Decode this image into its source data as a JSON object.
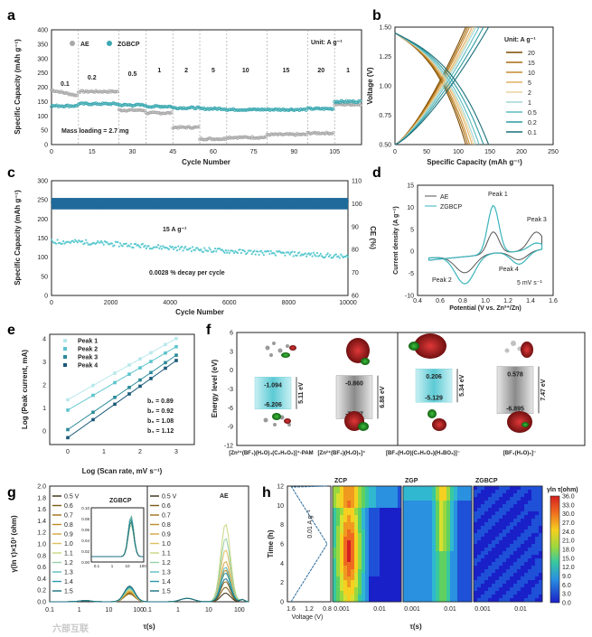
{
  "watermark": "六部互联",
  "chart_data": [
    {
      "panel": "a",
      "type": "scatter",
      "xlabel": "Cycle Number",
      "ylabel": "Specific Capacity (mAh g⁻¹)",
      "xlim": [
        0,
        115
      ],
      "ylim": [
        0,
        400
      ],
      "xticks": [
        "0",
        "15",
        "30",
        "45",
        "60",
        "75",
        "90",
        "105"
      ],
      "yticks": [
        "0",
        "50",
        "100",
        "150",
        "200",
        "250",
        "300",
        "350",
        "400"
      ],
      "unit_label": "Unit: A g⁻¹",
      "mass_loading": "Mass loading = 2.7 mg",
      "rates": [
        "0.1",
        "0.2",
        "0.5",
        "1",
        "2",
        "5",
        "10",
        "15",
        "20",
        "1"
      ],
      "series": [
        {
          "name": "AE",
          "color": "#a8a8a8",
          "segments": [
            [
              0,
              10,
              180
            ],
            [
              10,
              25,
              185
            ],
            [
              25,
              35,
              120
            ],
            [
              35,
              45,
              110
            ],
            [
              45,
              55,
              60
            ],
            [
              55,
              65,
              20
            ],
            [
              65,
              80,
              25
            ],
            [
              80,
              95,
              35
            ],
            [
              95,
              105,
              40
            ],
            [
              105,
              115,
              140
            ]
          ]
        },
        {
          "name": "ZGBCP",
          "color": "#3aa8b0",
          "segments": [
            [
              0,
              10,
              135
            ],
            [
              10,
              25,
              142
            ],
            [
              25,
              35,
              138
            ],
            [
              35,
              45,
              133
            ],
            [
              45,
              55,
              128
            ],
            [
              55,
              65,
              125
            ],
            [
              65,
              80,
              122
            ],
            [
              80,
              95,
              122
            ],
            [
              95,
              105,
              125
            ],
            [
              105,
              115,
              150
            ]
          ]
        }
      ]
    },
    {
      "panel": "b",
      "type": "line",
      "xlabel": "Specific Capacity (mAh g⁻¹)",
      "ylabel": "Voltage (V)",
      "xlim": [
        0,
        250
      ],
      "ylim": [
        0.5,
        1.5
      ],
      "xticks": [
        "0",
        "50",
        "100",
        "150",
        "200",
        "250"
      ],
      "yticks": [
        "0.50",
        "0.75",
        "1.00",
        "1.25",
        "1.50"
      ],
      "legend_title": "Unit: A g⁻¹",
      "legend": [
        "20",
        "15",
        "10",
        "5",
        "2",
        "1",
        "0.5",
        "0.2",
        "0.1"
      ],
      "colors": [
        "#7a4a00",
        "#a86a10",
        "#c58a30",
        "#e0b060",
        "#e8d4a0",
        "#9fd6d4",
        "#5cbcc0",
        "#2d9aa2",
        "#1a6e78"
      ],
      "capacities": [
        112,
        115,
        118,
        122,
        125,
        128,
        133,
        140,
        148
      ]
    },
    {
      "panel": "c",
      "type": "scatter",
      "xlabel": "Cycle Number",
      "ylabel": "Specific Capacity (mAh g⁻¹)",
      "y2label": "CE (%)",
      "xlim": [
        0,
        10000
      ],
      "ylim": [
        0,
        300
      ],
      "y2lim": [
        60,
        110
      ],
      "xticks": [
        "0",
        "2000",
        "4000",
        "6000",
        "8000",
        "10000"
      ],
      "yticks": [
        "0",
        "50",
        "100",
        "150",
        "200",
        "250",
        "300"
      ],
      "y2ticks": [
        "60",
        "70",
        "80",
        "90",
        "100",
        "110"
      ],
      "rate_label": "15 A g⁻¹",
      "decay_label": "0.0028 % decay per cycle",
      "capacity": {
        "x": [
          0,
          1000,
          3000,
          5000,
          7000,
          9000,
          10000
        ],
        "y": [
          140,
          140,
          130,
          120,
          112,
          106,
          100
        ]
      },
      "ce": {
        "x": [
          0,
          10000
        ],
        "y": [
          100,
          100
        ]
      }
    },
    {
      "panel": "d",
      "type": "line",
      "xlabel": "Potential (V vs. Zn²⁺/Zn)",
      "ylabel": "Current density (A g⁻¹)",
      "xlim": [
        0.4,
        1.6
      ],
      "ylim": [
        -10,
        15
      ],
      "xticks": [
        "0.4",
        "0.6",
        "0.8",
        "1.0",
        "1.2",
        "1.4",
        "1.6"
      ],
      "yticks": [
        "-10",
        "-5",
        "0",
        "5",
        "10",
        "15"
      ],
      "legend": [
        "AE",
        "ZGBCP"
      ],
      "annotations": [
        "Peak 1",
        "Peak 2",
        "Peak 3",
        "Peak 4",
        "5 mV s⁻¹"
      ]
    },
    {
      "panel": "e",
      "type": "scatter",
      "xlabel": "Log (Scan rate, mV s⁻¹)",
      "ylabel": "Log (Peak current, mA)",
      "xlim": [
        -0.5,
        3.5
      ],
      "ylim": [
        -0.6,
        4.2
      ],
      "xticks": [
        "0",
        "1",
        "2",
        "3"
      ],
      "yticks": [
        "0",
        "1",
        "2",
        "3",
        "4"
      ],
      "series": [
        {
          "name": "Peak 1",
          "b": "b₁ = 0.89",
          "color": "#b8e8ec",
          "x": [
            0,
            0.7,
            1.3,
            1.7,
            2.0,
            2.3,
            2.7,
            3.0
          ],
          "intercept": 1.35
        },
        {
          "name": "Peak 2",
          "b": "b₂ = 0.92",
          "color": "#5cc4cc",
          "x": [
            0,
            0.7,
            1.3,
            1.7,
            2.0,
            2.3,
            2.7,
            3.0
          ],
          "intercept": 0.9
        },
        {
          "name": "Peak 3",
          "b": "b₃ = 1.08",
          "color": "#2a8a98",
          "x": [
            0,
            0.7,
            1.3,
            1.7,
            2.0,
            2.3,
            2.7,
            3.0
          ],
          "intercept": 0.05
        },
        {
          "name": "Peak 4",
          "b": "b₄ = 1.12",
          "color": "#1a5878",
          "x": [
            0,
            0.7,
            1.3,
            1.7,
            2.0,
            2.3,
            2.7,
            3.0
          ],
          "intercept": -0.3
        }
      ]
    },
    {
      "panel": "f",
      "type": "bar",
      "ylabel": "Energy level (eV)",
      "ylim": [
        -12,
        6
      ],
      "yticks": [
        "6",
        "3",
        "0",
        "-3",
        "-6",
        "-9",
        "-12"
      ],
      "items": [
        {
          "lumo": "-1.094",
          "homo": "-6.206",
          "gap": "5.11 eV",
          "color": "#8fd6de",
          "label": "[Zn²⁺(BF₄)(H₂O)₄(C₂H₆O₂)]⁺-PAM"
        },
        {
          "lumo": "-0.860",
          "homo": "-7.737",
          "gap": "6.88 eV",
          "color": "#9a9a9a",
          "label": "[Zn²⁺(BF₄)(H₂O)₆]⁺"
        },
        {
          "lumo": "0.206",
          "homo": "-5.129",
          "gap": "5.34 eV",
          "color": "#8fd6de",
          "label": "[BF₄(H₂O)(C₂H₆O₂)(H₃BO₃)]⁻"
        },
        {
          "lumo": "0.578",
          "homo": "-6.895",
          "gap": "7.47 eV",
          "color": "#9a9a9a",
          "label": "[BF₄(H₂O)₅]⁻"
        }
      ]
    },
    {
      "panel": "g",
      "type": "line",
      "xlabel": "τ(s)",
      "ylabel": "γ(ln τ)×10³ (ohm)",
      "ylim": [
        0,
        2.0
      ],
      "yticks": [
        "0.0",
        "0.2",
        "0.4",
        "0.6",
        "0.8",
        "1.0",
        "1.2",
        "1.4",
        "1.6",
        "1.8",
        "2.0"
      ],
      "xticks": [
        "0.1",
        "1",
        "10",
        "100"
      ],
      "legend": [
        "0.5 V",
        "0.6",
        "0.7",
        "0.8",
        "0.9",
        "1.0",
        "1.1",
        "1.2",
        "1.3",
        "1.4",
        "1.5"
      ],
      "colors": [
        "#3a2a10",
        "#7a5a10",
        "#a0701a",
        "#c08a2a",
        "#d4a640",
        "#e0c060",
        "#c8d880",
        "#98d0a8",
        "#5cbcc0",
        "#2a9aa8",
        "#1a6e80"
      ],
      "subtitles": [
        "ZGBCP",
        "AE"
      ],
      "inset_yticks": [
        "0.10",
        "0.08",
        "0.06",
        "0.04",
        "0.02",
        "0.00"
      ],
      "inset_xticks": [
        "0.1",
        "1",
        "10",
        "100"
      ]
    },
    {
      "panel": "h",
      "type": "heatmap",
      "ylabel": "Time (h)",
      "xlabel": "τ(s)",
      "voltage_label": "Voltage (V)",
      "rate_label": "0.01 A g⁻¹",
      "ylim": [
        0,
        12
      ],
      "yticks": [
        "0",
        "2",
        "4",
        "6",
        "8",
        "10",
        "12"
      ],
      "voltage_ticks": [
        "1.6",
        "1.2",
        "0.8"
      ],
      "x_ticks": [
        "0.001",
        "0.01"
      ],
      "maps": [
        "ZCP",
        "ZGP",
        "ZGBCP"
      ],
      "colorbar_title": "γln τ(ohm)",
      "colorbar_ticks": [
        "36.0",
        "33.0",
        "30.0",
        "27.0",
        "24.0",
        "21.0",
        "18.0",
        "15.0",
        "12.0",
        "9.0",
        "6.0",
        "3.0",
        "0.0"
      ]
    }
  ]
}
